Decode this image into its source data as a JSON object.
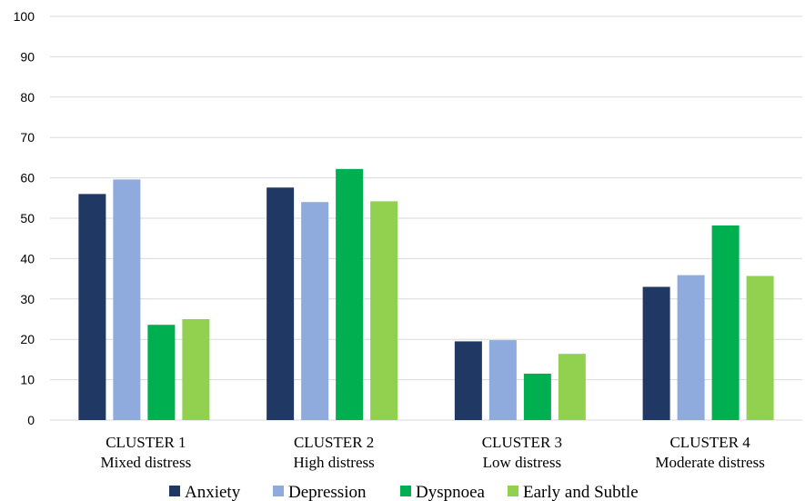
{
  "chart_data": {
    "type": "bar",
    "title": "",
    "xlabel": "",
    "ylabel": "",
    "ylim": [
      0,
      100
    ],
    "yticks": [
      0,
      10,
      20,
      30,
      40,
      50,
      60,
      70,
      80,
      90,
      100
    ],
    "grid": true,
    "legend_position": "bottom",
    "categories": [
      [
        "CLUSTER 1",
        "Mixed distress"
      ],
      [
        "CLUSTER 2",
        "High distress"
      ],
      [
        "CLUSTER 3",
        "Low distress"
      ],
      [
        "CLUSTER 4",
        "Moderate distress"
      ]
    ],
    "series": [
      {
        "name": "Anxiety",
        "color": "#203864",
        "values": [
          56,
          57.6,
          19.5,
          33
        ]
      },
      {
        "name": "Depression",
        "color": "#8faadc",
        "values": [
          59.6,
          54,
          19.8,
          35.9
        ]
      },
      {
        "name": "Dyspnoea",
        "color": "#00b050",
        "values": [
          23.6,
          62.2,
          11.5,
          48.2
        ]
      },
      {
        "name": "Early and Subtle",
        "color": "#92d050",
        "values": [
          25,
          54.2,
          16.4,
          35.7
        ]
      }
    ]
  }
}
